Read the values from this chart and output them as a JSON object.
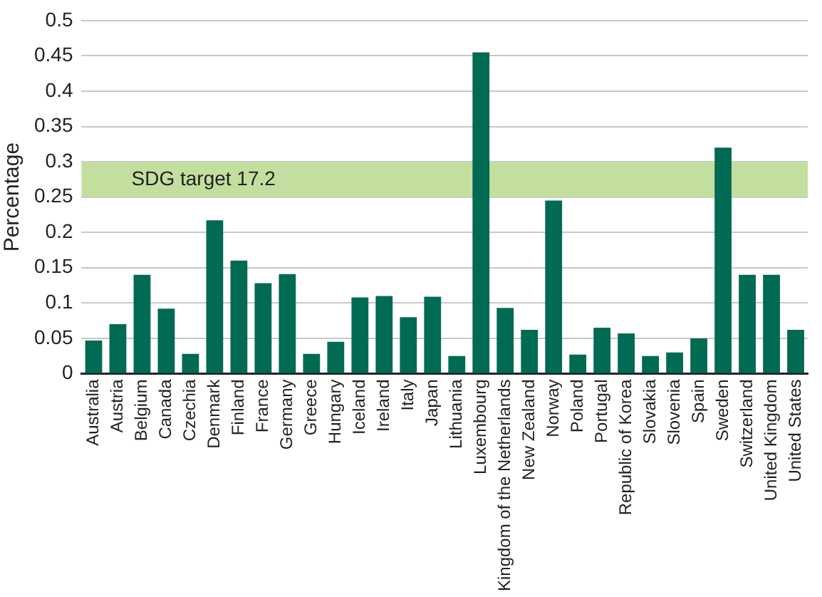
{
  "chart_data": {
    "type": "bar",
    "ylabel": "Percentage",
    "categories": [
      "Australia",
      "Austria",
      "Belgium",
      "Canada",
      "Czechia",
      "Denmark",
      "Finland",
      "France",
      "Germany",
      "Greece",
      "Hungary",
      "Iceland",
      "Ireland",
      "Italy",
      "Japan",
      "Lithuania",
      "Luxembourg",
      "Kingdom of the Netherlands",
      "New Zealand",
      "Norway",
      "Poland",
      "Portugal",
      "Republic of Korea",
      "Slovakia",
      "Slovenia",
      "Spain",
      "Sweden",
      "Switzerland",
      "United Kingdom",
      "United States"
    ],
    "series": [
      {
        "color": "#006a53",
        "values": [
          0.047,
          0.07,
          0.14,
          0.092,
          0.028,
          0.217,
          0.16,
          0.128,
          0.141,
          0.028,
          0.045,
          0.108,
          0.11,
          0.08,
          0.109,
          0.025,
          0.455,
          0.093,
          0.062,
          0.245,
          0.027,
          0.065,
          0.057,
          0.025,
          0.03,
          0.05,
          0.32,
          0.14,
          0.14,
          0.062
        ]
      }
    ],
    "ylim": [
      0,
      0.5
    ],
    "yticks": [
      0,
      0.05,
      0.1,
      0.15,
      0.2,
      0.25,
      0.3,
      0.35,
      0.4,
      0.45,
      0.5
    ],
    "grid": "y",
    "legend": false,
    "bands": [
      {
        "axis": "y",
        "from": 0.25,
        "to": 0.3,
        "label": "SDG target 17.2",
        "color": "#c3df9f"
      }
    ]
  }
}
